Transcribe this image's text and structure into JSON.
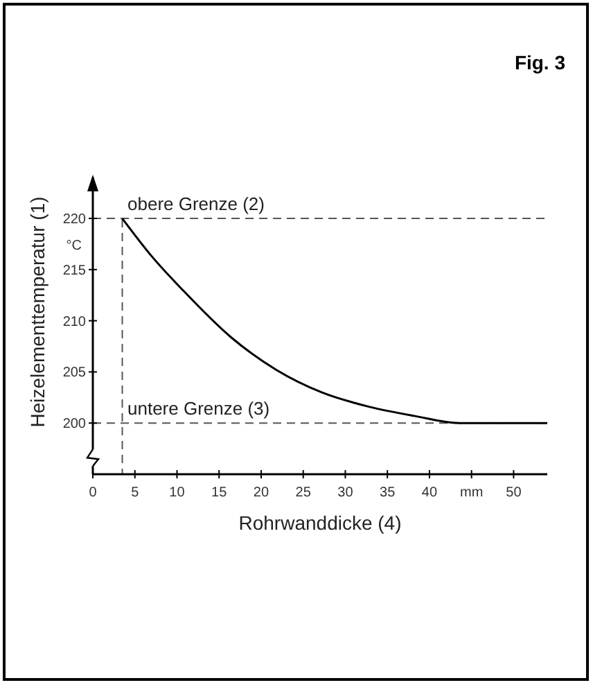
{
  "chart_data": {
    "type": "line",
    "title": "Fig. 3",
    "xlabel": "Rohrwanddicke (4)",
    "ylabel": "Heizelementtemperatur (1)",
    "annotations": [
      "°C"
    ],
    "series": [
      {
        "color": "#000000",
        "x": [
          3.5,
          7,
          10.8,
          16.4,
          21.8,
          27.2,
          32.8,
          38.2,
          43.6,
          54
        ],
        "values": [
          220,
          216.3,
          212.9,
          208.4,
          205.2,
          203,
          201.6,
          200.7,
          200,
          200
        ]
      }
    ],
    "xlim": [
      0,
      54
    ],
    "xticks": [
      0,
      5,
      10,
      15,
      20,
      25,
      30,
      35,
      40,
      {
        "value": 45,
        "label": "mm"
      },
      50
    ],
    "ylim": [
      195,
      224
    ],
    "yticks": [
      200,
      205,
      210,
      215,
      220
    ],
    "ref_lines": [
      {
        "axis": "y",
        "value": 220,
        "label": "obere Grenze (2)",
        "line_style": "dashed"
      },
      {
        "axis": "y",
        "value": 200,
        "label": "untere Grenze (3)",
        "line_style": "dashed"
      },
      {
        "axis": "x",
        "value": 3.5,
        "line_style": "dashed"
      }
    ],
    "line_style": "solid"
  }
}
